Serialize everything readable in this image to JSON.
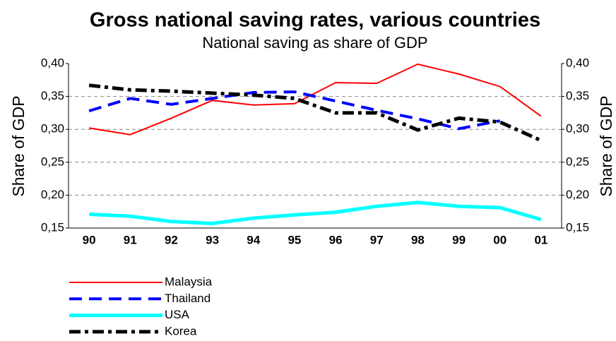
{
  "chart_data": {
    "type": "line",
    "title": "Gross national saving rates, various countries",
    "subtitle": "National saving as share of GDP",
    "y_label": "Share of GDP",
    "y2_label": "Share of GDP",
    "categories": [
      "90",
      "91",
      "92",
      "93",
      "94",
      "95",
      "96",
      "97",
      "98",
      "99",
      "00",
      "01"
    ],
    "series": [
      {
        "name": "Malaysia",
        "color": "#ff0000",
        "line_style": "solid",
        "values": [
          0.302,
          0.292,
          0.317,
          0.344,
          0.337,
          0.339,
          0.371,
          0.37,
          0.399,
          0.384,
          0.365,
          0.32
        ]
      },
      {
        "name": "Thailand",
        "color": "#0000ff",
        "line_style": "dashed",
        "values": [
          0.328,
          0.347,
          0.338,
          0.347,
          0.356,
          0.357,
          0.343,
          0.329,
          0.316,
          0.301,
          0.313,
          null
        ]
      },
      {
        "name": "USA",
        "color": "#00ffff",
        "line_style": "solid",
        "values": [
          0.171,
          0.168,
          0.16,
          0.157,
          0.165,
          0.17,
          0.174,
          0.183,
          0.189,
          0.183,
          0.181,
          0.163
        ]
      },
      {
        "name": "Korea",
        "color": "#000000",
        "line_style": "dashdot",
        "values": [
          0.367,
          0.36,
          0.358,
          0.355,
          0.352,
          0.347,
          0.325,
          0.325,
          0.299,
          0.317,
          0.311,
          0.283
        ]
      }
    ],
    "ylim": [
      0.15,
      0.4
    ],
    "yticks": [
      {
        "value": 0.15,
        "label": "0,15"
      },
      {
        "value": 0.2,
        "label": "0,20"
      },
      {
        "value": 0.25,
        "label": "0,25"
      },
      {
        "value": 0.3,
        "label": "0,30"
      },
      {
        "value": 0.35,
        "label": "0,35"
      },
      {
        "value": 0.4,
        "label": "0,40"
      }
    ],
    "y2lim": [
      0.15,
      0.4
    ],
    "y2ticks": [
      {
        "value": 0.15,
        "label": "0,15"
      },
      {
        "value": 0.2,
        "label": "0,20"
      },
      {
        "value": 0.25,
        "label": "0,25"
      },
      {
        "value": 0.3,
        "label": "0,30"
      },
      {
        "value": 0.35,
        "label": "0,35"
      },
      {
        "value": 0.4,
        "label": "0,40"
      }
    ],
    "grid": true,
    "legend_position": "bottom-left"
  }
}
